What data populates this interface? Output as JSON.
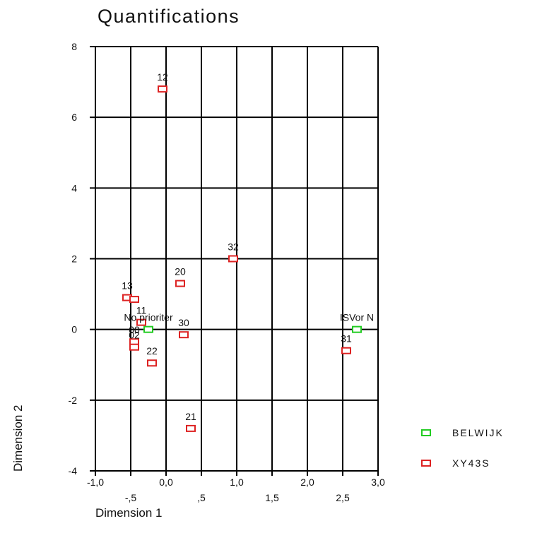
{
  "chart_data": {
    "type": "scatter",
    "title": "Quantifications",
    "xlabel": "Dimension 1",
    "ylabel": "Dimension 2",
    "xlim": [
      -1.0,
      3.0
    ],
    "ylim": [
      -4,
      8
    ],
    "x_ticks_major": [
      "-1,0",
      "0,0",
      "1,0",
      "2,0",
      "3,0"
    ],
    "x_ticks_minor": [
      "-,5",
      ",5",
      "1,5",
      "2,5"
    ],
    "y_ticks": [
      "8",
      "6",
      "4",
      "2",
      "0",
      "-2",
      "-4"
    ],
    "grid": true,
    "legend_position": "right",
    "series": [
      {
        "name": "BELWIJK",
        "color": "#22cc22",
        "points": [
          {
            "label": "No prioriter",
            "x": -0.25,
            "y": 0.0
          },
          {
            "label": "ISVor N",
            "x": 2.7,
            "y": 0.0
          }
        ]
      },
      {
        "name": "XY43S",
        "color": "#dd2222",
        "points": [
          {
            "label": "12",
            "x": -0.05,
            "y": 6.8
          },
          {
            "label": "32",
            "x": 0.95,
            "y": 2.0
          },
          {
            "label": "20",
            "x": 0.2,
            "y": 1.3
          },
          {
            "label": "13",
            "x": -0.55,
            "y": 0.9
          },
          {
            "label": "",
            "x": -0.45,
            "y": 0.85
          },
          {
            "label": "11",
            "x": -0.35,
            "y": 0.2
          },
          {
            "label": "30",
            "x": 0.25,
            "y": -0.15
          },
          {
            "label": "00",
            "x": -0.45,
            "y": -0.35
          },
          {
            "label": "02",
            "x": -0.45,
            "y": -0.5
          },
          {
            "label": "22",
            "x": -0.2,
            "y": -0.95
          },
          {
            "label": "21",
            "x": 0.35,
            "y": -2.8
          },
          {
            "label": "31",
            "x": 2.55,
            "y": -0.6
          }
        ]
      }
    ]
  }
}
